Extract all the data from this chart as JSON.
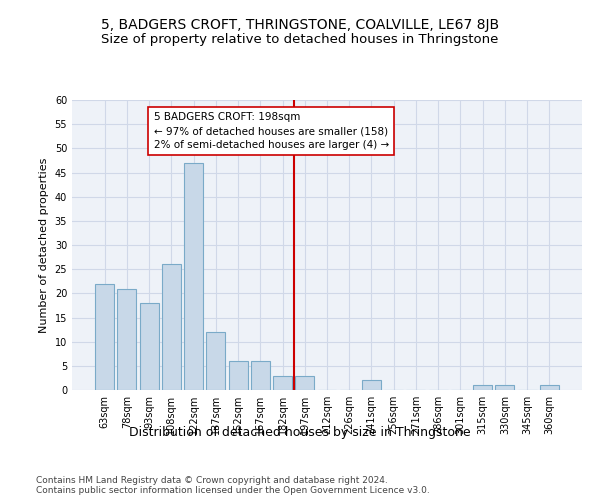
{
  "title": "5, BADGERS CROFT, THRINGSTONE, COALVILLE, LE67 8JB",
  "subtitle": "Size of property relative to detached houses in Thringstone",
  "xlabel": "Distribution of detached houses by size in Thringstone",
  "ylabel": "Number of detached properties",
  "bar_color": "#c8d8e8",
  "bar_edgecolor": "#7aaac8",
  "bar_linewidth": 0.8,
  "categories": [
    "63sqm",
    "78sqm",
    "93sqm",
    "108sqm",
    "122sqm",
    "137sqm",
    "152sqm",
    "167sqm",
    "182sqm",
    "197sqm",
    "212sqm",
    "226sqm",
    "241sqm",
    "256sqm",
    "271sqm",
    "286sqm",
    "301sqm",
    "315sqm",
    "330sqm",
    "345sqm",
    "360sqm"
  ],
  "values": [
    22,
    21,
    18,
    26,
    47,
    12,
    6,
    6,
    3,
    3,
    0,
    0,
    2,
    0,
    0,
    0,
    0,
    1,
    1,
    0,
    1
  ],
  "marker_line_color": "#cc0000",
  "annotation_text": "5 BADGERS CROFT: 198sqm\n← 97% of detached houses are smaller (158)\n2% of semi-detached houses are larger (4) →",
  "annotation_box_color": "#ffffff",
  "annotation_box_edgecolor": "#cc0000",
  "ylim": [
    0,
    60
  ],
  "yticks": [
    0,
    5,
    10,
    15,
    20,
    25,
    30,
    35,
    40,
    45,
    50,
    55,
    60
  ],
  "grid_color": "#d0d8e8",
  "background_color": "#eef2f8",
  "footer_line1": "Contains HM Land Registry data © Crown copyright and database right 2024.",
  "footer_line2": "Contains public sector information licensed under the Open Government Licence v3.0.",
  "title_fontsize": 10,
  "subtitle_fontsize": 9.5,
  "xlabel_fontsize": 9,
  "ylabel_fontsize": 8,
  "tick_fontsize": 7,
  "footer_fontsize": 6.5,
  "annotation_fontsize": 7.5
}
